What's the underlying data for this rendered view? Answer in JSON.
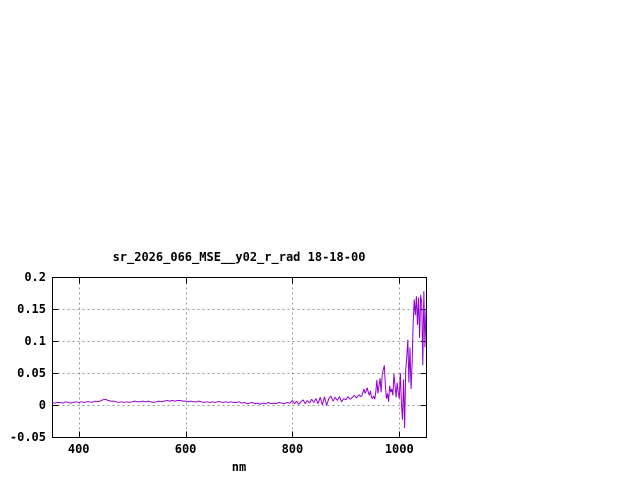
{
  "window": {
    "background": "#ffffff"
  },
  "chart_data": {
    "type": "line",
    "title": "sr_2026_066_MSE__y02_r_rad 18-18-00",
    "xlabel": "nm",
    "ylabel": "",
    "xlim": [
      350,
      1050
    ],
    "ylim": [
      -0.05,
      0.2
    ],
    "x_ticks": [
      400,
      600,
      800,
      1000
    ],
    "x_tick_labels": [
      "400",
      "600",
      "800",
      "1000"
    ],
    "y_ticks": [
      -0.05,
      0,
      0.05,
      0.1,
      0.15,
      0.2
    ],
    "y_tick_labels": [
      "-0.05",
      "0",
      "0.05",
      "0.1",
      "0.15",
      "0.2"
    ],
    "grid": true,
    "legend": false,
    "colors": {
      "line": "#9400d3",
      "grid": "#999999",
      "axis": "#000000",
      "text": "#000000",
      "background": "#ffffff"
    },
    "series": [
      {
        "name": "sr_2026_066_MSE__y02_r_rad 18-18-00",
        "points": [
          [
            350,
            0.004
          ],
          [
            355,
            0.003
          ],
          [
            360,
            0.004
          ],
          [
            365,
            0.004
          ],
          [
            370,
            0.003
          ],
          [
            375,
            0.005
          ],
          [
            380,
            0.004
          ],
          [
            385,
            0.003
          ],
          [
            390,
            0.004
          ],
          [
            395,
            0.005
          ],
          [
            400,
            0.004
          ],
          [
            405,
            0.005
          ],
          [
            410,
            0.004
          ],
          [
            415,
            0.005
          ],
          [
            420,
            0.005
          ],
          [
            425,
            0.004
          ],
          [
            430,
            0.006
          ],
          [
            435,
            0.005
          ],
          [
            440,
            0.006
          ],
          [
            445,
            0.008
          ],
          [
            450,
            0.009
          ],
          [
            455,
            0.007
          ],
          [
            460,
            0.006
          ],
          [
            465,
            0.006
          ],
          [
            470,
            0.005
          ],
          [
            475,
            0.004
          ],
          [
            480,
            0.005
          ],
          [
            485,
            0.004
          ],
          [
            490,
            0.005
          ],
          [
            495,
            0.004
          ],
          [
            500,
            0.005
          ],
          [
            505,
            0.006
          ],
          [
            510,
            0.005
          ],
          [
            515,
            0.005
          ],
          [
            520,
            0.006
          ],
          [
            525,
            0.005
          ],
          [
            530,
            0.006
          ],
          [
            535,
            0.005
          ],
          [
            540,
            0.004
          ],
          [
            545,
            0.005
          ],
          [
            550,
            0.006
          ],
          [
            555,
            0.005
          ],
          [
            560,
            0.006
          ],
          [
            565,
            0.007
          ],
          [
            570,
            0.006
          ],
          [
            575,
            0.007
          ],
          [
            580,
            0.006
          ],
          [
            585,
            0.007
          ],
          [
            590,
            0.007
          ],
          [
            595,
            0.006
          ],
          [
            600,
            0.006
          ],
          [
            605,
            0.005
          ],
          [
            610,
            0.006
          ],
          [
            615,
            0.005
          ],
          [
            620,
            0.005
          ],
          [
            625,
            0.006
          ],
          [
            630,
            0.005
          ],
          [
            635,
            0.004
          ],
          [
            640,
            0.005
          ],
          [
            645,
            0.004
          ],
          [
            650,
            0.005
          ],
          [
            655,
            0.004
          ],
          [
            660,
            0.005
          ],
          [
            665,
            0.005
          ],
          [
            670,
            0.004
          ],
          [
            675,
            0.005
          ],
          [
            680,
            0.004
          ],
          [
            685,
            0.005
          ],
          [
            690,
            0.004
          ],
          [
            695,
            0.004
          ],
          [
            700,
            0.005
          ],
          [
            705,
            0.003
          ],
          [
            710,
            0.004
          ],
          [
            715,
            0.002
          ],
          [
            720,
            0.003
          ],
          [
            725,
            0.004
          ],
          [
            730,
            0.002
          ],
          [
            735,
            0.003
          ],
          [
            740,
            0.001
          ],
          [
            745,
            0.003
          ],
          [
            750,
            0.002
          ],
          [
            755,
            0.004
          ],
          [
            760,
            0.002
          ],
          [
            765,
            0.003
          ],
          [
            770,
            0.002
          ],
          [
            775,
            0.004
          ],
          [
            780,
            0.003
          ],
          [
            785,
            0.002
          ],
          [
            790,
            0.004
          ],
          [
            795,
            0.003
          ],
          [
            800,
            0.007
          ],
          [
            804,
            0.002
          ],
          [
            808,
            0.006
          ],
          [
            812,
            0.001
          ],
          [
            816,
            0.005
          ],
          [
            820,
            0.008
          ],
          [
            824,
            0.002
          ],
          [
            828,
            0.007
          ],
          [
            832,
            0.003
          ],
          [
            836,
            0.009
          ],
          [
            840,
            0.004
          ],
          [
            844,
            0.01
          ],
          [
            848,
            0.002
          ],
          [
            852,
            0.012
          ],
          [
            856,
            0.0
          ],
          [
            860,
            0.013
          ],
          [
            864,
            -0.001
          ],
          [
            868,
            0.01
          ],
          [
            872,
            0.014
          ],
          [
            876,
            0.006
          ],
          [
            880,
            0.012
          ],
          [
            884,
            0.007
          ],
          [
            888,
            0.013
          ],
          [
            892,
            0.005
          ],
          [
            896,
            0.01
          ],
          [
            900,
            0.008
          ],
          [
            904,
            0.013
          ],
          [
            908,
            0.009
          ],
          [
            912,
            0.012
          ],
          [
            916,
            0.015
          ],
          [
            920,
            0.011
          ],
          [
            924,
            0.016
          ],
          [
            928,
            0.013
          ],
          [
            930,
            0.015
          ],
          [
            932,
            0.02
          ],
          [
            934,
            0.025
          ],
          [
            936,
            0.018
          ],
          [
            938,
            0.022
          ],
          [
            940,
            0.027
          ],
          [
            942,
            0.02
          ],
          [
            944,
            0.015
          ],
          [
            946,
            0.022
          ],
          [
            948,
            0.012
          ],
          [
            950,
            0.01
          ],
          [
            952,
            0.014
          ],
          [
            954,
            0.009
          ],
          [
            956,
            0.02
          ],
          [
            958,
            0.039
          ],
          [
            960,
            0.018
          ],
          [
            962,
            0.03
          ],
          [
            964,
            0.042
          ],
          [
            966,
            0.02
          ],
          [
            968,
            0.047
          ],
          [
            970,
            0.055
          ],
          [
            972,
            0.062
          ],
          [
            974,
            0.03
          ],
          [
            976,
            0.01
          ],
          [
            978,
            0.018
          ],
          [
            980,
            0.005
          ],
          [
            982,
            0.03
          ],
          [
            984,
            0.02
          ],
          [
            986,
            0.025
          ],
          [
            988,
            0.015
          ],
          [
            990,
            0.049
          ],
          [
            992,
            0.03
          ],
          [
            994,
            0.012
          ],
          [
            996,
            0.035
          ],
          [
            998,
            0.02
          ],
          [
            1000,
            0.01
          ],
          [
            1002,
            0.05
          ],
          [
            1004,
            0.002
          ],
          [
            1006,
            -0.023
          ],
          [
            1008,
            0.04
          ],
          [
            1010,
            -0.036
          ],
          [
            1012,
            0.055
          ],
          [
            1014,
            0.075
          ],
          [
            1016,
            0.102
          ],
          [
            1018,
            0.035
          ],
          [
            1020,
            0.09
          ],
          [
            1022,
            0.025
          ],
          [
            1024,
            0.065
          ],
          [
            1026,
            0.13
          ],
          [
            1028,
            0.165
          ],
          [
            1030,
            0.14
          ],
          [
            1032,
            0.17
          ],
          [
            1034,
            0.125
          ],
          [
            1036,
            0.168
          ],
          [
            1038,
            0.105
          ],
          [
            1040,
            0.172
          ],
          [
            1042,
            0.16
          ],
          [
            1044,
            0.062
          ],
          [
            1046,
            0.178
          ],
          [
            1048,
            0.09
          ],
          [
            1050,
            0.148
          ]
        ]
      }
    ]
  }
}
